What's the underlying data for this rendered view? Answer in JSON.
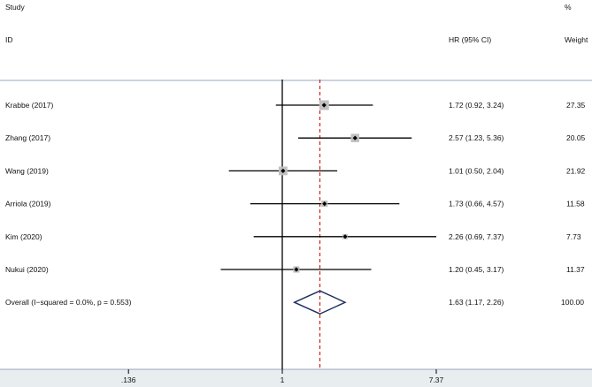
{
  "chart_data": {
    "type": "forest",
    "header": {
      "study_top": "Study",
      "study_bottom": "ID",
      "hr": "HR (95% CI)",
      "weight_top": "%",
      "weight_bottom": "Weight"
    },
    "x_scale": "log",
    "x_ticks": [
      {
        "value": 0.136,
        "label": ".136"
      },
      {
        "value": 1,
        "label": "1"
      },
      {
        "value": 7.37,
        "label": "7.37"
      }
    ],
    "null_line": 1,
    "pooled_line": 1.63,
    "studies": [
      {
        "name": "Krabbe (2017)",
        "hr": 1.72,
        "lo": 0.92,
        "hi": 3.24,
        "ci_text": "1.72 (0.92, 3.24)",
        "weight": 27.35,
        "weight_text": "27.35"
      },
      {
        "name": "Zhang (2017)",
        "hr": 2.57,
        "lo": 1.23,
        "hi": 5.36,
        "ci_text": "2.57 (1.23, 5.36)",
        "weight": 20.05,
        "weight_text": "20.05"
      },
      {
        "name": "Wang (2019)",
        "hr": 1.01,
        "lo": 0.5,
        "hi": 2.04,
        "ci_text": "1.01 (0.50, 2.04)",
        "weight": 21.92,
        "weight_text": "21.92"
      },
      {
        "name": "Arriola (2019)",
        "hr": 1.73,
        "lo": 0.66,
        "hi": 4.57,
        "ci_text": "1.73 (0.66, 4.57)",
        "weight": 11.58,
        "weight_text": "11.58"
      },
      {
        "name": "Kim (2020)",
        "hr": 2.26,
        "lo": 0.69,
        "hi": 7.37,
        "ci_text": "2.26 (0.69, 7.37)",
        "weight": 7.73,
        "weight_text": "7.73"
      },
      {
        "name": "Nukui (2020)",
        "hr": 1.2,
        "lo": 0.45,
        "hi": 3.17,
        "ci_text": "1.20 (0.45, 3.17)",
        "weight": 11.37,
        "weight_text": "11.37"
      }
    ],
    "overall": {
      "label": "Overall  (I−squared = 0.0%, p = 0.553)",
      "hr": 1.63,
      "lo": 1.17,
      "hi": 2.26,
      "ci_text": "1.63 (1.17, 2.26)",
      "weight_text": "100.00"
    },
    "colors": {
      "line": "#000000",
      "weight_box": "#c0c0c0",
      "pooled_line": "#cc0000",
      "diamond": "#1f2f5f",
      "axis_band": "#e8eef0",
      "rule": "#9aa4c0"
    }
  }
}
